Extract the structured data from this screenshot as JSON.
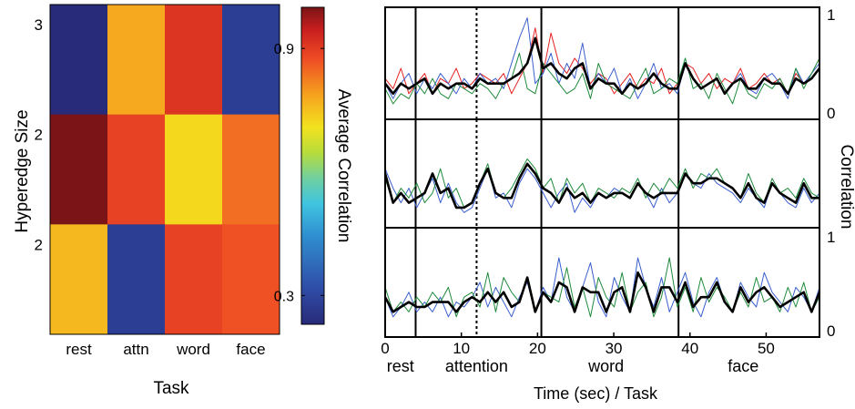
{
  "chart_data": [
    {
      "type": "heatmap",
      "xlabel": "Task",
      "ylabel": "Hyperedge Size",
      "x_categories": [
        "rest",
        "attn",
        "word",
        "face"
      ],
      "y_categories": [
        "3",
        "2",
        "2"
      ],
      "values": [
        [
          0.23,
          0.78,
          0.91,
          0.28
        ],
        [
          1.0,
          0.89,
          0.72,
          0.84
        ],
        [
          0.76,
          0.28,
          0.89,
          0.87
        ]
      ],
      "colorbar": {
        "label": "Average Correlation",
        "range": [
          0.23,
          1.0
        ],
        "ticks": [
          0.3,
          0.9
        ],
        "tick_labels": [
          "0.3",
          "0.9"
        ]
      }
    },
    {
      "type": "line",
      "xlabel": "Time (sec) / Task",
      "ylabel": "Correlation",
      "xlim": [
        0,
        57
      ],
      "xticks": [
        0,
        10,
        20,
        30,
        40,
        50
      ],
      "xtick_labels": [
        "0",
        "10",
        "20",
        "30",
        "40",
        "50"
      ],
      "right_ticks_top": [
        "1",
        "0"
      ],
      "right_ticks_bottom": [
        "1",
        "0"
      ],
      "ylim": [
        0,
        1
      ],
      "task_labels": [
        {
          "label": "rest",
          "x": 2
        },
        {
          "label": "attention",
          "x": 12
        },
        {
          "label": "word",
          "x": 29
        },
        {
          "label": "face",
          "x": 47
        }
      ],
      "boundaries_solid": [
        4,
        20.5,
        38.5
      ],
      "boundaries_dashed": [
        12
      ],
      "panels": [
        {
          "series": [
            {
              "color": "#e62020",
              "values": [
                0.35,
                0.25,
                0.45,
                0.2,
                0.3,
                0.4,
                0.2,
                0.35,
                0.3,
                0.45,
                0.25,
                0.3,
                0.4,
                0.35,
                0.3,
                0.4,
                0.2,
                0.35,
                0.5,
                0.85,
                0.4,
                0.8,
                0.5,
                0.4,
                0.55,
                0.45,
                0.3,
                0.4,
                0.35,
                0.2,
                0.3,
                0.4,
                0.25,
                0.35,
                0.3,
                0.45,
                0.2,
                0.3,
                0.5,
                0.45,
                0.3,
                0.4,
                0.25,
                0.35,
                0.3,
                0.45,
                0.25,
                0.3,
                0.4,
                0.3,
                0.35,
                0.2,
                0.4,
                0.3,
                0.35,
                0.45
              ]
            },
            {
              "color": "#3a5fcd",
              "values": [
                0.3,
                0.15,
                0.3,
                0.4,
                0.2,
                0.35,
                0.25,
                0.4,
                0.3,
                0.2,
                0.35,
                0.25,
                0.4,
                0.3,
                0.35,
                0.25,
                0.5,
                0.75,
                0.95,
                0.3,
                0.4,
                0.6,
                0.3,
                0.5,
                0.35,
                0.7,
                0.25,
                0.4,
                0.3,
                0.45,
                0.2,
                0.35,
                0.15,
                0.3,
                0.5,
                0.25,
                0.3,
                0.2,
                0.5,
                0.35,
                0.25,
                0.3,
                0.35,
                0.2,
                0.3,
                0.4,
                0.25,
                0.2,
                0.35,
                0.4,
                0.3,
                0.15,
                0.45,
                0.3,
                0.4,
                0.5
              ]
            },
            {
              "color": "#1e8a3a",
              "values": [
                0.25,
                0.1,
                0.2,
                0.15,
                0.3,
                0.2,
                0.35,
                0.2,
                0.15,
                0.3,
                0.25,
                0.2,
                0.3,
                0.25,
                0.15,
                0.3,
                0.35,
                0.6,
                0.25,
                0.2,
                0.5,
                0.4,
                0.3,
                0.2,
                0.25,
                0.4,
                0.15,
                0.5,
                0.3,
                0.25,
                0.2,
                0.15,
                0.3,
                0.45,
                0.2,
                0.25,
                0.35,
                0.3,
                0.55,
                0.25,
                0.3,
                0.15,
                0.4,
                0.25,
                0.1,
                0.35,
                0.2,
                0.15,
                0.3,
                0.25,
                0.35,
                0.2,
                0.45,
                0.25,
                0.4,
                0.55
              ]
            },
            {
              "color": "#000000",
              "bold": true,
              "values": [
                0.3,
                0.2,
                0.3,
                0.25,
                0.3,
                0.35,
                0.2,
                0.3,
                0.25,
                0.3,
                0.3,
                0.25,
                0.35,
                0.3,
                0.3,
                0.3,
                0.35,
                0.4,
                0.5,
                0.75,
                0.45,
                0.5,
                0.4,
                0.35,
                0.45,
                0.5,
                0.25,
                0.35,
                0.3,
                0.3,
                0.2,
                0.3,
                0.25,
                0.3,
                0.4,
                0.3,
                0.25,
                0.25,
                0.5,
                0.35,
                0.25,
                0.3,
                0.35,
                0.2,
                0.3,
                0.35,
                0.25,
                0.25,
                0.35,
                0.3,
                0.3,
                0.2,
                0.35,
                0.3,
                0.35,
                0.45
              ]
            }
          ]
        },
        {
          "series": [
            {
              "color": "#3a5fcd",
              "values": [
                0.55,
                0.35,
                0.2,
                0.35,
                0.15,
                0.3,
                0.45,
                0.2,
                0.4,
                0.2,
                0.1,
                0.15,
                0.35,
                0.55,
                0.25,
                0.3,
                0.15,
                0.4,
                0.55,
                0.45,
                0.3,
                0.15,
                0.3,
                0.4,
                0.1,
                0.25,
                0.15,
                0.3,
                0.25,
                0.35,
                0.3,
                0.25,
                0.4,
                0.3,
                0.15,
                0.35,
                0.2,
                0.3,
                0.5,
                0.4,
                0.35,
                0.5,
                0.4,
                0.35,
                0.3,
                0.2,
                0.35,
                0.25,
                0.15,
                0.4,
                0.3,
                0.2,
                0.15,
                0.35,
                0.2,
                0.3
              ]
            },
            {
              "color": "#1e8a3a",
              "values": [
                0.45,
                0.2,
                0.35,
                0.25,
                0.4,
                0.2,
                0.3,
                0.55,
                0.25,
                0.35,
                0.15,
                0.2,
                0.4,
                0.6,
                0.3,
                0.25,
                0.35,
                0.5,
                0.65,
                0.55,
                0.35,
                0.45,
                0.2,
                0.45,
                0.3,
                0.4,
                0.2,
                0.35,
                0.3,
                0.25,
                0.35,
                0.3,
                0.45,
                0.25,
                0.4,
                0.3,
                0.45,
                0.35,
                0.55,
                0.35,
                0.5,
                0.45,
                0.55,
                0.4,
                0.35,
                0.25,
                0.5,
                0.3,
                0.2,
                0.45,
                0.3,
                0.35,
                0.25,
                0.45,
                0.3,
                0.25
              ]
            },
            {
              "color": "#000000",
              "bold": true,
              "values": [
                0.5,
                0.2,
                0.3,
                0.2,
                0.25,
                0.3,
                0.5,
                0.3,
                0.35,
                0.15,
                0.15,
                0.2,
                0.4,
                0.55,
                0.3,
                0.25,
                0.25,
                0.45,
                0.6,
                0.5,
                0.35,
                0.3,
                0.2,
                0.35,
                0.25,
                0.3,
                0.2,
                0.3,
                0.25,
                0.3,
                0.3,
                0.25,
                0.4,
                0.3,
                0.25,
                0.3,
                0.3,
                0.3,
                0.5,
                0.4,
                0.4,
                0.45,
                0.45,
                0.4,
                0.35,
                0.25,
                0.4,
                0.25,
                0.2,
                0.4,
                0.3,
                0.25,
                0.2,
                0.4,
                0.25,
                0.25
              ]
            }
          ]
        },
        {
          "series": [
            {
              "color": "#3a5fcd",
              "values": [
                0.35,
                0.15,
                0.25,
                0.4,
                0.2,
                0.3,
                0.2,
                0.35,
                0.15,
                0.3,
                0.25,
                0.35,
                0.5,
                0.25,
                0.45,
                0.3,
                0.15,
                0.35,
                0.5,
                0.2,
                0.45,
                0.3,
                0.75,
                0.35,
                0.2,
                0.45,
                0.7,
                0.3,
                0.15,
                0.55,
                0.35,
                0.2,
                0.75,
                0.45,
                0.25,
                0.55,
                0.2,
                0.4,
                0.6,
                0.3,
                0.15,
                0.4,
                0.55,
                0.3,
                0.2,
                0.5,
                0.35,
                0.25,
                0.6,
                0.4,
                0.3,
                0.2,
                0.45,
                0.35,
                0.2,
                0.45
              ]
            },
            {
              "color": "#1e8a3a",
              "values": [
                0.45,
                0.2,
                0.3,
                0.2,
                0.35,
                0.25,
                0.4,
                0.3,
                0.45,
                0.15,
                0.35,
                0.4,
                0.25,
                0.6,
                0.2,
                0.55,
                0.4,
                0.3,
                0.55,
                0.2,
                0.4,
                0.35,
                0.3,
                0.65,
                0.25,
                0.45,
                0.15,
                0.55,
                0.35,
                0.25,
                0.6,
                0.2,
                0.4,
                0.5,
                0.15,
                0.35,
                0.75,
                0.25,
                0.45,
                0.2,
                0.55,
                0.3,
                0.45,
                0.35,
                0.2,
                0.4,
                0.25,
                0.55,
                0.3,
                0.35,
                0.2,
                0.45,
                0.25,
                0.5,
                0.2,
                0.35
              ]
            },
            {
              "color": "#000000",
              "bold": true,
              "values": [
                0.35,
                0.2,
                0.25,
                0.3,
                0.25,
                0.25,
                0.3,
                0.3,
                0.3,
                0.2,
                0.3,
                0.35,
                0.3,
                0.4,
                0.3,
                0.4,
                0.25,
                0.3,
                0.55,
                0.2,
                0.4,
                0.3,
                0.5,
                0.45,
                0.2,
                0.45,
                0.4,
                0.4,
                0.2,
                0.4,
                0.45,
                0.2,
                0.6,
                0.45,
                0.2,
                0.45,
                0.45,
                0.3,
                0.5,
                0.25,
                0.35,
                0.35,
                0.5,
                0.3,
                0.2,
                0.45,
                0.3,
                0.4,
                0.45,
                0.35,
                0.25,
                0.3,
                0.35,
                0.4,
                0.2,
                0.4
              ]
            }
          ]
        }
      ]
    }
  ]
}
